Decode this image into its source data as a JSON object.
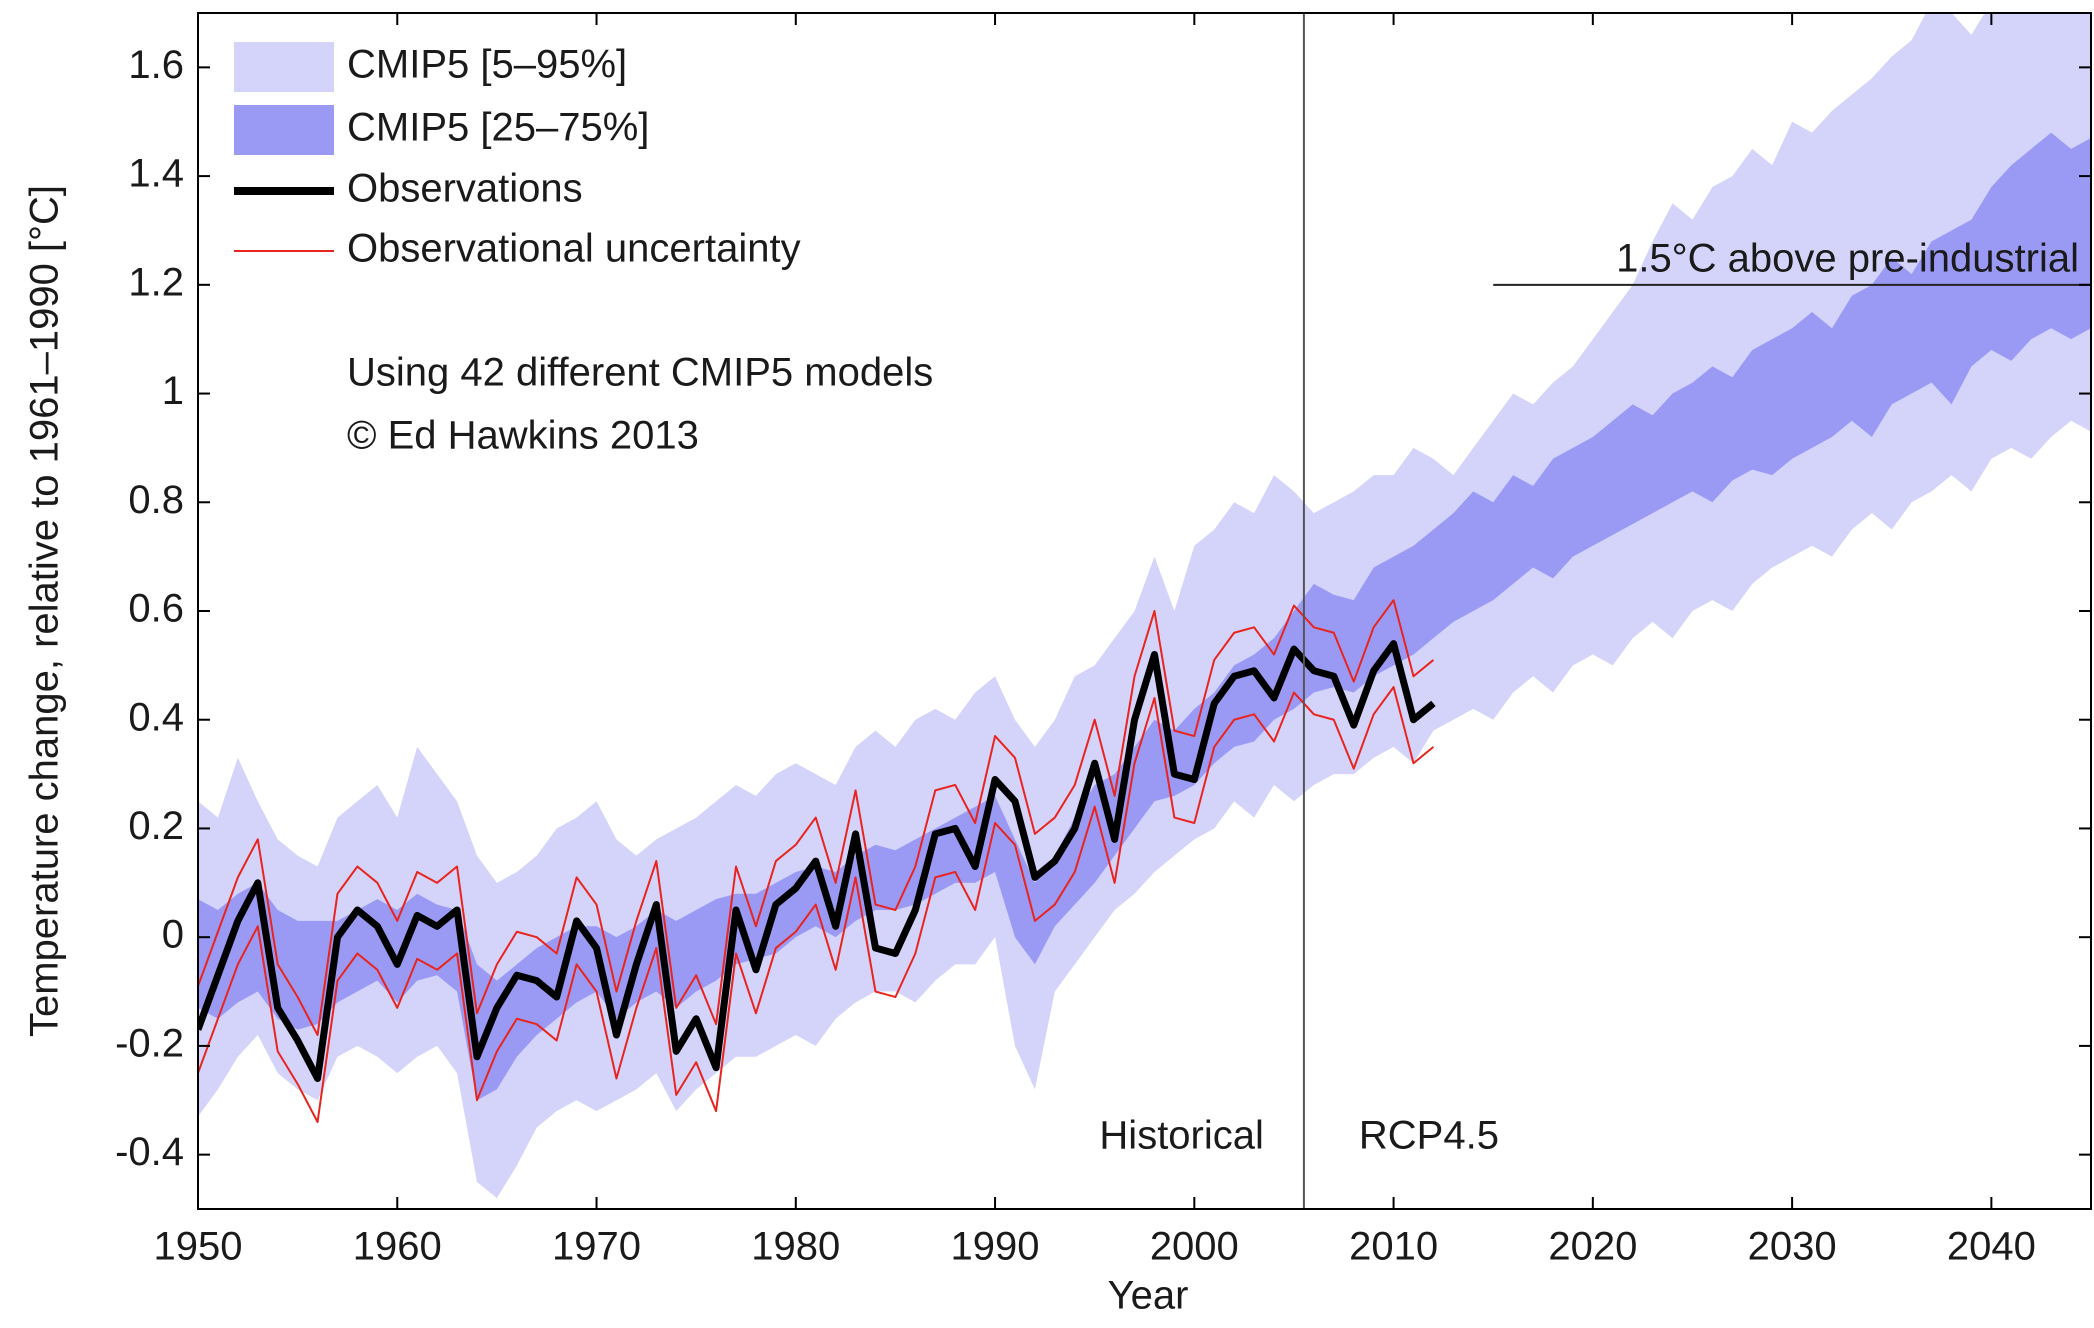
{
  "chart_data": {
    "type": "line",
    "ylabel": "Temperature change, relative to 1961–1990 [°C]",
    "xlabel": "Year",
    "xlim": [
      1950,
      2045
    ],
    "ylim": [
      -0.5,
      1.7
    ],
    "xticks": [
      1950,
      1960,
      1970,
      1980,
      1990,
      2000,
      2010,
      2020,
      2030,
      2040
    ],
    "yticks": [
      -0.4,
      -0.2,
      0,
      0.2,
      0.4,
      0.6,
      0.8,
      1,
      1.2,
      1.4,
      1.6
    ],
    "x": [
      1950,
      1951,
      1952,
      1953,
      1954,
      1955,
      1956,
      1957,
      1958,
      1959,
      1960,
      1961,
      1962,
      1963,
      1964,
      1965,
      1966,
      1967,
      1968,
      1969,
      1970,
      1971,
      1972,
      1973,
      1974,
      1975,
      1976,
      1977,
      1978,
      1979,
      1980,
      1981,
      1982,
      1983,
      1984,
      1985,
      1986,
      1987,
      1988,
      1989,
      1990,
      1991,
      1992,
      1993,
      1994,
      1995,
      1996,
      1997,
      1998,
      1999,
      2000,
      2001,
      2002,
      2003,
      2004,
      2005,
      2006,
      2007,
      2008,
      2009,
      2010,
      2011,
      2012,
      2013,
      2014,
      2015,
      2016,
      2017,
      2018,
      2019,
      2020,
      2021,
      2022,
      2023,
      2024,
      2025,
      2026,
      2027,
      2028,
      2029,
      2030,
      2031,
      2032,
      2033,
      2034,
      2035,
      2036,
      2037,
      2038,
      2039,
      2040,
      2041,
      2042,
      2043,
      2044,
      2045
    ],
    "series": [
      {
        "name": "CMIP5 [5–95%]",
        "style": "band",
        "color": "#d4d4fb",
        "upper": [
          0.25,
          0.22,
          0.33,
          0.25,
          0.18,
          0.15,
          0.13,
          0.22,
          0.25,
          0.28,
          0.22,
          0.35,
          0.3,
          0.25,
          0.15,
          0.1,
          0.12,
          0.15,
          0.2,
          0.22,
          0.25,
          0.18,
          0.15,
          0.18,
          0.2,
          0.22,
          0.25,
          0.28,
          0.26,
          0.3,
          0.32,
          0.3,
          0.28,
          0.35,
          0.38,
          0.35,
          0.4,
          0.42,
          0.4,
          0.45,
          0.48,
          0.4,
          0.35,
          0.4,
          0.48,
          0.5,
          0.55,
          0.6,
          0.7,
          0.6,
          0.72,
          0.75,
          0.8,
          0.78,
          0.85,
          0.82,
          0.78,
          0.8,
          0.82,
          0.85,
          0.85,
          0.9,
          0.88,
          0.85,
          0.9,
          0.95,
          1.0,
          0.98,
          1.02,
          1.05,
          1.1,
          1.15,
          1.2,
          1.28,
          1.35,
          1.32,
          1.38,
          1.4,
          1.45,
          1.42,
          1.5,
          1.48,
          1.52,
          1.55,
          1.58,
          1.62,
          1.65,
          1.72,
          1.7,
          1.66,
          1.72,
          1.7,
          1.75,
          1.72,
          1.75,
          1.74
        ],
        "lower": [
          -0.33,
          -0.28,
          -0.22,
          -0.18,
          -0.25,
          -0.28,
          -0.3,
          -0.22,
          -0.2,
          -0.22,
          -0.25,
          -0.22,
          -0.2,
          -0.25,
          -0.45,
          -0.48,
          -0.42,
          -0.35,
          -0.32,
          -0.3,
          -0.32,
          -0.3,
          -0.28,
          -0.25,
          -0.32,
          -0.28,
          -0.25,
          -0.22,
          -0.22,
          -0.2,
          -0.18,
          -0.2,
          -0.15,
          -0.12,
          -0.1,
          -0.1,
          -0.12,
          -0.08,
          -0.05,
          -0.05,
          0.0,
          -0.2,
          -0.28,
          -0.1,
          -0.05,
          0.0,
          0.05,
          0.08,
          0.12,
          0.15,
          0.18,
          0.2,
          0.25,
          0.22,
          0.28,
          0.25,
          0.28,
          0.3,
          0.3,
          0.33,
          0.35,
          0.32,
          0.38,
          0.4,
          0.42,
          0.4,
          0.45,
          0.48,
          0.45,
          0.5,
          0.52,
          0.5,
          0.55,
          0.58,
          0.55,
          0.6,
          0.62,
          0.6,
          0.65,
          0.68,
          0.7,
          0.72,
          0.7,
          0.75,
          0.78,
          0.75,
          0.8,
          0.82,
          0.85,
          0.82,
          0.88,
          0.9,
          0.88,
          0.92,
          0.95,
          0.93
        ]
      },
      {
        "name": "CMIP5 [25–75%]",
        "style": "band",
        "color": "#9a9af5",
        "upper": [
          0.07,
          0.05,
          0.08,
          0.1,
          0.05,
          0.03,
          0.03,
          0.03,
          0.05,
          0.07,
          0.05,
          0.08,
          0.06,
          0.05,
          -0.05,
          -0.08,
          -0.05,
          -0.02,
          0.0,
          0.02,
          0.02,
          0.0,
          0.02,
          0.05,
          0.03,
          0.05,
          0.07,
          0.08,
          0.08,
          0.1,
          0.12,
          0.13,
          0.12,
          0.15,
          0.17,
          0.16,
          0.18,
          0.2,
          0.22,
          0.24,
          0.26,
          0.18,
          0.1,
          0.15,
          0.22,
          0.28,
          0.3,
          0.35,
          0.4,
          0.38,
          0.42,
          0.45,
          0.5,
          0.52,
          0.55,
          0.6,
          0.65,
          0.63,
          0.62,
          0.68,
          0.7,
          0.72,
          0.75,
          0.78,
          0.82,
          0.8,
          0.85,
          0.83,
          0.88,
          0.9,
          0.92,
          0.95,
          0.98,
          0.96,
          1.0,
          1.02,
          1.05,
          1.03,
          1.08,
          1.1,
          1.12,
          1.15,
          1.12,
          1.18,
          1.2,
          1.25,
          1.22,
          1.28,
          1.3,
          1.32,
          1.38,
          1.42,
          1.45,
          1.48,
          1.45,
          1.47
        ],
        "lower": [
          -0.13,
          -0.15,
          -0.12,
          -0.1,
          -0.15,
          -0.17,
          -0.16,
          -0.12,
          -0.1,
          -0.08,
          -0.12,
          -0.08,
          -0.07,
          -0.1,
          -0.3,
          -0.28,
          -0.22,
          -0.18,
          -0.15,
          -0.12,
          -0.1,
          -0.15,
          -0.12,
          -0.1,
          -0.13,
          -0.1,
          -0.08,
          -0.05,
          -0.04,
          -0.03,
          0.0,
          0.02,
          0.0,
          0.03,
          0.05,
          0.05,
          0.06,
          0.08,
          0.1,
          0.1,
          0.12,
          0.0,
          -0.05,
          0.02,
          0.06,
          0.1,
          0.15,
          0.2,
          0.25,
          0.26,
          0.28,
          0.32,
          0.35,
          0.36,
          0.4,
          0.42,
          0.45,
          0.46,
          0.45,
          0.48,
          0.5,
          0.52,
          0.55,
          0.58,
          0.6,
          0.62,
          0.65,
          0.68,
          0.66,
          0.7,
          0.72,
          0.74,
          0.76,
          0.78,
          0.8,
          0.82,
          0.8,
          0.84,
          0.86,
          0.85,
          0.88,
          0.9,
          0.92,
          0.95,
          0.92,
          0.98,
          1.0,
          1.02,
          0.98,
          1.05,
          1.08,
          1.06,
          1.1,
          1.12,
          1.1,
          1.12
        ]
      },
      {
        "name": "Observations",
        "style": "line",
        "color": "#000000",
        "x": [
          1950,
          1951,
          1952,
          1953,
          1954,
          1955,
          1956,
          1957,
          1958,
          1959,
          1960,
          1961,
          1962,
          1963,
          1964,
          1965,
          1966,
          1967,
          1968,
          1969,
          1970,
          1971,
          1972,
          1973,
          1974,
          1975,
          1976,
          1977,
          1978,
          1979,
          1980,
          1981,
          1982,
          1983,
          1984,
          1985,
          1986,
          1987,
          1988,
          1989,
          1990,
          1991,
          1992,
          1993,
          1994,
          1995,
          1996,
          1997,
          1998,
          1999,
          2000,
          2001,
          2002,
          2003,
          2004,
          2005,
          2006,
          2007,
          2008,
          2009,
          2010,
          2011,
          2012
        ],
        "values": [
          -0.17,
          -0.07,
          0.03,
          0.1,
          -0.13,
          -0.19,
          -0.26,
          0.0,
          0.05,
          0.02,
          -0.05,
          0.04,
          0.02,
          0.05,
          -0.22,
          -0.13,
          -0.07,
          -0.08,
          -0.11,
          0.03,
          -0.02,
          -0.18,
          -0.05,
          0.06,
          -0.21,
          -0.15,
          -0.24,
          0.05,
          -0.06,
          0.06,
          0.09,
          0.14,
          0.02,
          0.19,
          -0.02,
          -0.03,
          0.05,
          0.19,
          0.2,
          0.13,
          0.29,
          0.25,
          0.11,
          0.14,
          0.2,
          0.32,
          0.18,
          0.4,
          0.52,
          0.3,
          0.29,
          0.43,
          0.48,
          0.49,
          0.44,
          0.53,
          0.49,
          0.48,
          0.39,
          0.49,
          0.54,
          0.4,
          0.43
        ]
      },
      {
        "name": "Observational uncertainty",
        "style": "lines",
        "color": "#e8241e",
        "x": [
          1950,
          1951,
          1952,
          1953,
          1954,
          1955,
          1956,
          1957,
          1958,
          1959,
          1960,
          1961,
          1962,
          1963,
          1964,
          1965,
          1966,
          1967,
          1968,
          1969,
          1970,
          1971,
          1972,
          1973,
          1974,
          1975,
          1976,
          1977,
          1978,
          1979,
          1980,
          1981,
          1982,
          1983,
          1984,
          1985,
          1986,
          1987,
          1988,
          1989,
          1990,
          1991,
          1992,
          1993,
          1994,
          1995,
          1996,
          1997,
          1998,
          1999,
          2000,
          2001,
          2002,
          2003,
          2004,
          2005,
          2006,
          2007,
          2008,
          2009,
          2010,
          2011,
          2012
        ],
        "upper": [
          -0.09,
          0.01,
          0.11,
          0.18,
          -0.05,
          -0.11,
          -0.18,
          0.08,
          0.13,
          0.1,
          0.03,
          0.12,
          0.1,
          0.13,
          -0.14,
          -0.05,
          0.01,
          0.0,
          -0.03,
          0.11,
          0.06,
          -0.1,
          0.03,
          0.14,
          -0.13,
          -0.07,
          -0.16,
          0.13,
          0.02,
          0.14,
          0.17,
          0.22,
          0.1,
          0.27,
          0.06,
          0.05,
          0.13,
          0.27,
          0.28,
          0.21,
          0.37,
          0.33,
          0.19,
          0.22,
          0.28,
          0.4,
          0.26,
          0.48,
          0.6,
          0.38,
          0.37,
          0.51,
          0.56,
          0.57,
          0.52,
          0.61,
          0.57,
          0.56,
          0.47,
          0.57,
          0.62,
          0.48,
          0.51
        ],
        "lower": [
          -0.25,
          -0.15,
          -0.05,
          0.02,
          -0.21,
          -0.27,
          -0.34,
          -0.08,
          -0.03,
          -0.06,
          -0.13,
          -0.04,
          -0.06,
          -0.03,
          -0.3,
          -0.21,
          -0.15,
          -0.16,
          -0.19,
          -0.05,
          -0.1,
          -0.26,
          -0.13,
          -0.02,
          -0.29,
          -0.23,
          -0.32,
          -0.03,
          -0.14,
          -0.02,
          0.01,
          0.06,
          -0.06,
          0.11,
          -0.1,
          -0.11,
          -0.03,
          0.11,
          0.12,
          0.05,
          0.21,
          0.17,
          0.03,
          0.06,
          0.12,
          0.24,
          0.1,
          0.32,
          0.44,
          0.22,
          0.21,
          0.35,
          0.4,
          0.41,
          0.36,
          0.45,
          0.41,
          0.4,
          0.31,
          0.41,
          0.46,
          0.32,
          0.35
        ]
      }
    ],
    "annotations": [
      "Using 42 different CMIP5 models",
      "© Ed Hawkins 2013"
    ],
    "divider": {
      "x": 2005.5,
      "left_label": "Historical",
      "right_label": "RCP4.5"
    },
    "threshold": {
      "value": 1.2,
      "from": 2015,
      "label": "1.5°C above pre-industrial"
    },
    "legend": "upper-left"
  }
}
